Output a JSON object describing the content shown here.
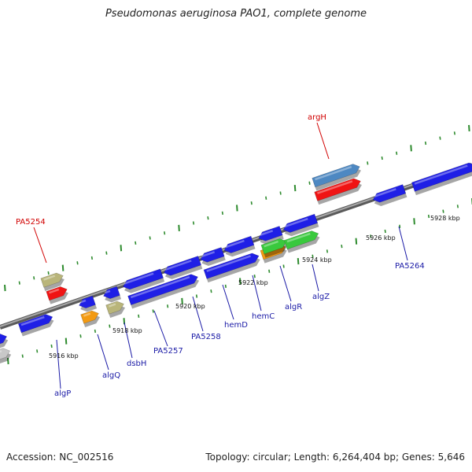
{
  "title": "Pseudomonas aeruginosa PAO1, complete genome",
  "footer": {
    "accession": "Accession: NC_002516",
    "summary": "Topology: circular; Length: 6,264,404 bp; Genes: 5,646"
  },
  "colors": {
    "backbone": "#8c8c8c",
    "tick": "#2e8b2e",
    "label_blue": "#1a1aa6",
    "label_red": "#d10000",
    "gene_blue": "#1f1fe6",
    "gene_red": "#f01414",
    "gene_steel": "#4d88c2",
    "gene_khaki": "#b9b57a",
    "gene_orange": "#f39a12",
    "gene_green": "#39c93d",
    "gene_gray": "#c8c8c8"
  },
  "kbp_labels": [
    "5916 kbp",
    "5918 kbp",
    "5920 kbp",
    "5922 kbp",
    "5924 kbp",
    "5926 kbp",
    "5928 kbp"
  ],
  "gene_labels": [
    {
      "text": "algP",
      "color": "blue"
    },
    {
      "text": "algQ",
      "color": "blue"
    },
    {
      "text": "dsbH",
      "color": "blue"
    },
    {
      "text": "PA5257",
      "color": "blue"
    },
    {
      "text": "PA5258",
      "color": "blue"
    },
    {
      "text": "hemD",
      "color": "blue"
    },
    {
      "text": "hemC",
      "color": "blue"
    },
    {
      "text": "algR",
      "color": "blue"
    },
    {
      "text": "algZ",
      "color": "blue"
    },
    {
      "text": "PA5264",
      "color": "blue"
    },
    {
      "text": "PA5254",
      "color": "red"
    },
    {
      "text": "argH",
      "color": "red"
    }
  ]
}
